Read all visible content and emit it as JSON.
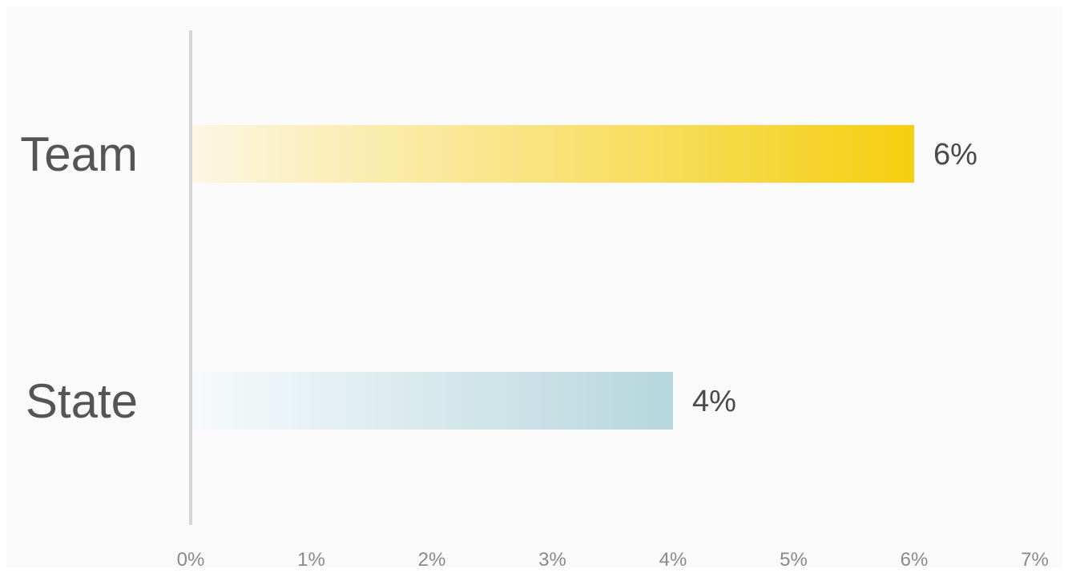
{
  "chart_data": {
    "type": "bar",
    "orientation": "horizontal",
    "categories": [
      "Team",
      "State"
    ],
    "values": [
      6,
      4
    ],
    "value_labels": [
      "6%",
      "4%"
    ],
    "title": "",
    "xlabel": "",
    "ylabel": "",
    "xlim": [
      0,
      7
    ],
    "x_ticks": [
      "0%",
      "1%",
      "2%",
      "3%",
      "4%",
      "5%",
      "6%",
      "7%"
    ],
    "grid": false,
    "legend": "none",
    "colors": {
      "background": "#fafafa",
      "axis_line": "#d6d6d6",
      "team_gradient_start": "#fcf6e3",
      "team_gradient_end": "#f5cf10",
      "state_gradient_start": "#f7fafb",
      "state_gradient_end": "#b6d7dd"
    }
  }
}
